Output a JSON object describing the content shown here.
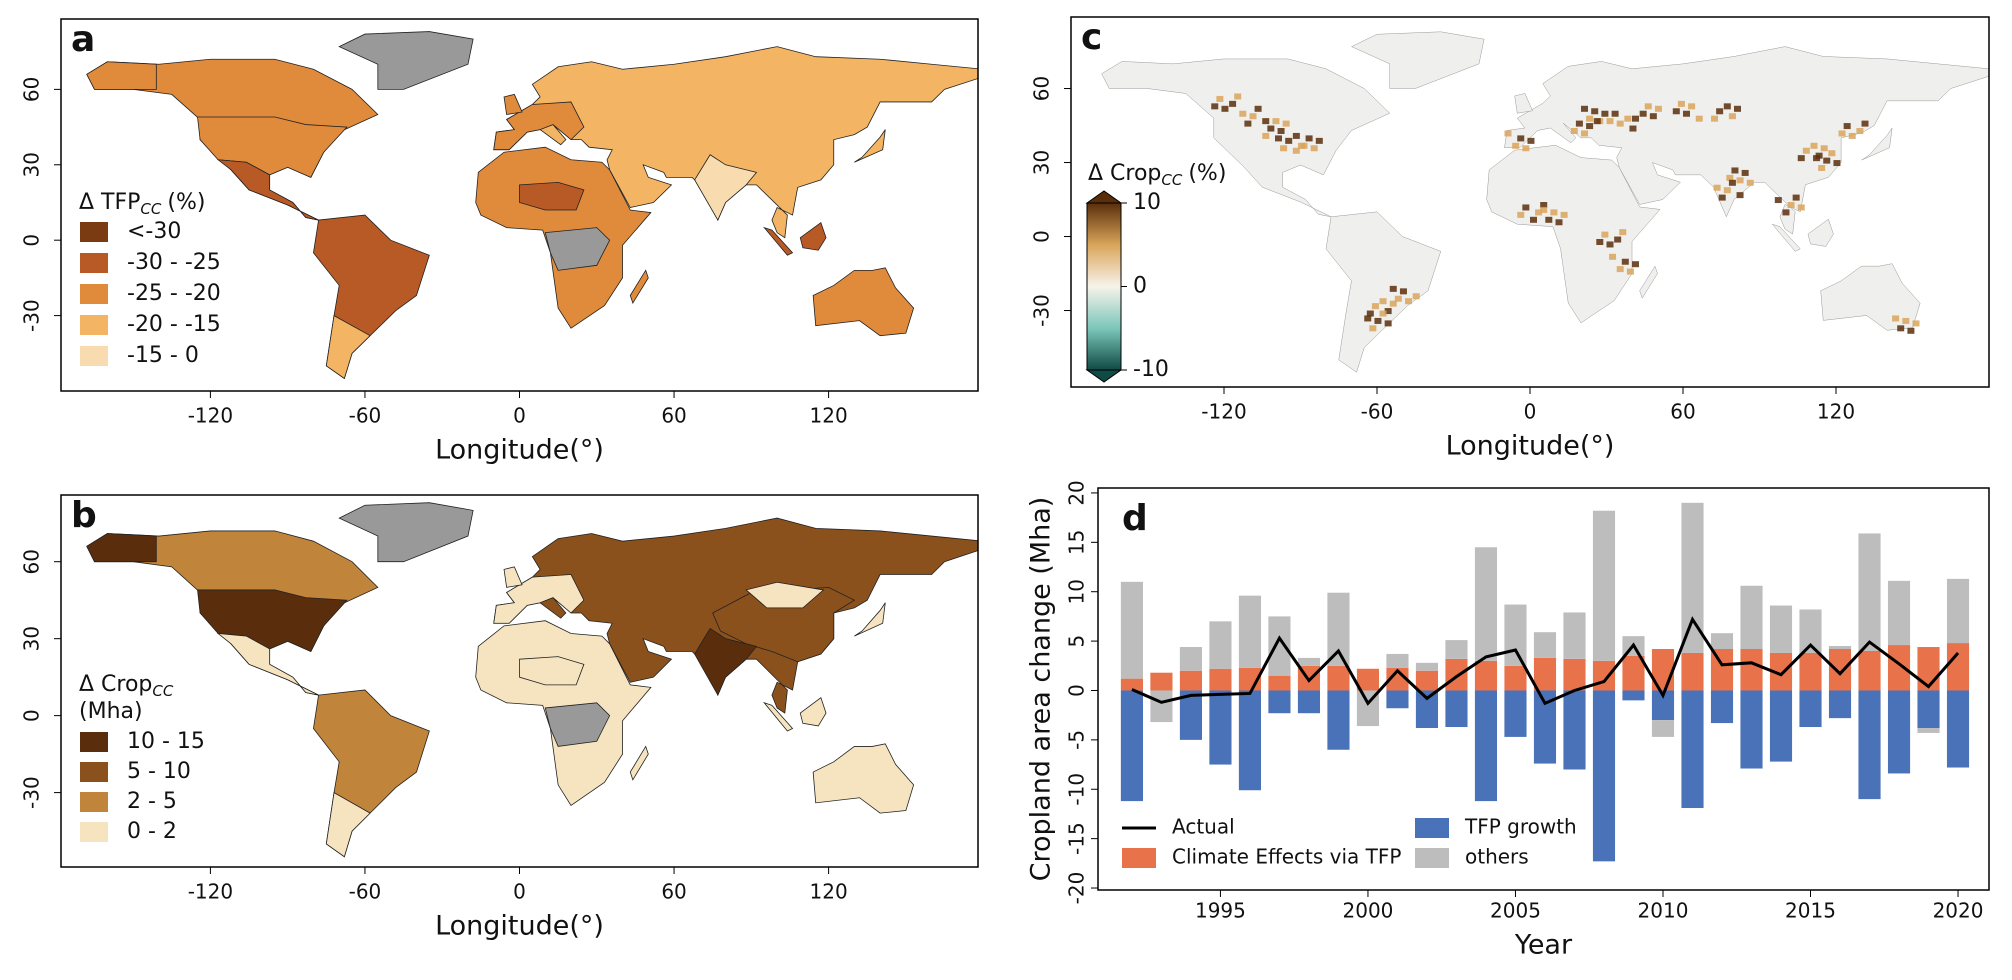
{
  "chart_data": [
    {
      "type": "map",
      "panel": "a",
      "xlabel": "Longitude(°)",
      "xlim": [
        -178,
        178
      ],
      "ylim": [
        -60,
        88
      ],
      "xticks": [
        -120,
        -60,
        0,
        60,
        120
      ],
      "yticks": [
        -30,
        0,
        30,
        60
      ],
      "legend_title": "Δ TFP",
      "legend_title_sub": "CC",
      "legend_title_unit": "(%)",
      "legend": {
        "labels": [
          "<-30",
          "-30 - -25",
          "-25 - -20",
          "-20 - -15",
          "-15 - 0"
        ],
        "colors": [
          "#7a3b12",
          "#b85a25",
          "#e08a3c",
          "#f3b464",
          "#f8dcb0"
        ]
      },
      "nodata_color": "#999999"
    },
    {
      "type": "map",
      "panel": "b",
      "xlabel": "Longitude(°)",
      "xlim": [
        -178,
        178
      ],
      "ylim": [
        -59,
        86
      ],
      "xticks": [
        -120,
        -60,
        0,
        60,
        120
      ],
      "yticks": [
        -30,
        0,
        30,
        60
      ],
      "legend_title": "Δ Crop",
      "legend_title_sub": "CC",
      "legend_title_unit": "(Mha)",
      "legend": {
        "labels": [
          "10 - 15",
          "5 - 10",
          "2 - 5",
          "0 - 2"
        ],
        "colors": [
          "#5a2e0c",
          "#8b511d",
          "#c0843a",
          "#f6e4c0"
        ]
      },
      "nodata_color": "#999999"
    },
    {
      "type": "map",
      "panel": "c",
      "xlabel": "Longitude(°)",
      "xlim": [
        -180,
        180
      ],
      "ylim": [
        -61,
        89
      ],
      "xticks": [
        -120,
        -60,
        0,
        60,
        120
      ],
      "yticks": [
        -30,
        0,
        30,
        60
      ],
      "legend_title": "Δ Crop",
      "legend_title_sub": "CC",
      "legend_title_unit": "(%)",
      "colorbar": {
        "lim": [
          -10,
          10
        ],
        "ticks": [
          10,
          0,
          -10
        ],
        "colors": [
          "#0f4a44",
          "#7cc6ba",
          "#f7f3ea",
          "#d9a55a",
          "#5a2e0b"
        ]
      },
      "land_color": "#efefed"
    },
    {
      "type": "bar",
      "panel": "d",
      "xlabel": "Year",
      "ylabel": "Cropland area change (Mha)",
      "xlim": [
        1990.85,
        2021.05
      ],
      "ylim": [
        -20.2,
        20.5
      ],
      "xticks": [
        1995,
        2000,
        2005,
        2010,
        2015,
        2020
      ],
      "yticks": [
        -20,
        -15,
        -10,
        -5,
        0,
        5,
        10,
        15,
        20
      ],
      "x": [
        1992,
        1993,
        1994,
        1995,
        1996,
        1997,
        1998,
        1999,
        2000,
        2001,
        2002,
        2003,
        2004,
        2005,
        2006,
        2007,
        2008,
        2009,
        2010,
        2011,
        2012,
        2013,
        2014,
        2015,
        2016,
        2017,
        2018,
        2019,
        2020
      ],
      "series": [
        {
          "name": "Actual",
          "type": "line",
          "color": "#000000",
          "values": [
            0.1,
            -1.2,
            -0.5,
            -0.4,
            -0.3,
            5.3,
            1.0,
            4.0,
            -1.3,
            2.0,
            -0.8,
            1.4,
            3.4,
            4.1,
            -1.3,
            0.0,
            0.9,
            4.6,
            -0.5,
            7.2,
            2.6,
            2.8,
            1.6,
            4.6,
            1.7,
            4.9,
            2.7,
            0.4,
            3.8
          ]
        },
        {
          "name": "Climate Effects via TFP",
          "color": "#e8734a",
          "values": [
            1.2,
            1.8,
            2.0,
            2.2,
            2.3,
            1.5,
            2.5,
            2.5,
            2.2,
            2.3,
            2.0,
            3.2,
            3.0,
            2.5,
            3.3,
            3.2,
            3.0,
            3.5,
            4.2,
            3.8,
            4.2,
            4.2,
            3.8,
            3.8,
            4.2,
            4.0,
            4.6,
            4.4,
            4.8
          ]
        },
        {
          "name": "TFP growth",
          "color": "#4a72b8",
          "values": [
            -11.2,
            0,
            -5.0,
            -7.5,
            -10.1,
            -2.3,
            -2.3,
            -6.0,
            0,
            -1.8,
            -3.8,
            -3.7,
            -11.2,
            -4.7,
            -7.4,
            -8.0,
            -17.3,
            -1.0,
            -3.0,
            -11.9,
            -3.3,
            -7.9,
            -7.2,
            -3.7,
            -2.8,
            -11.0,
            -8.4,
            -3.8,
            -7.8
          ]
        },
        {
          "name": "others",
          "color": "#bdbdbd",
          "values": [
            9.8,
            -3.2,
            2.4,
            4.8,
            7.3,
            6.0,
            0.8,
            7.4,
            -3.6,
            1.4,
            0.8,
            1.9,
            11.5,
            6.2,
            2.6,
            4.7,
            15.2,
            2.0,
            -1.7,
            15.2,
            1.6,
            6.4,
            4.8,
            4.4,
            0.3,
            11.9,
            6.5,
            -0.5,
            6.5
          ]
        }
      ]
    }
  ]
}
